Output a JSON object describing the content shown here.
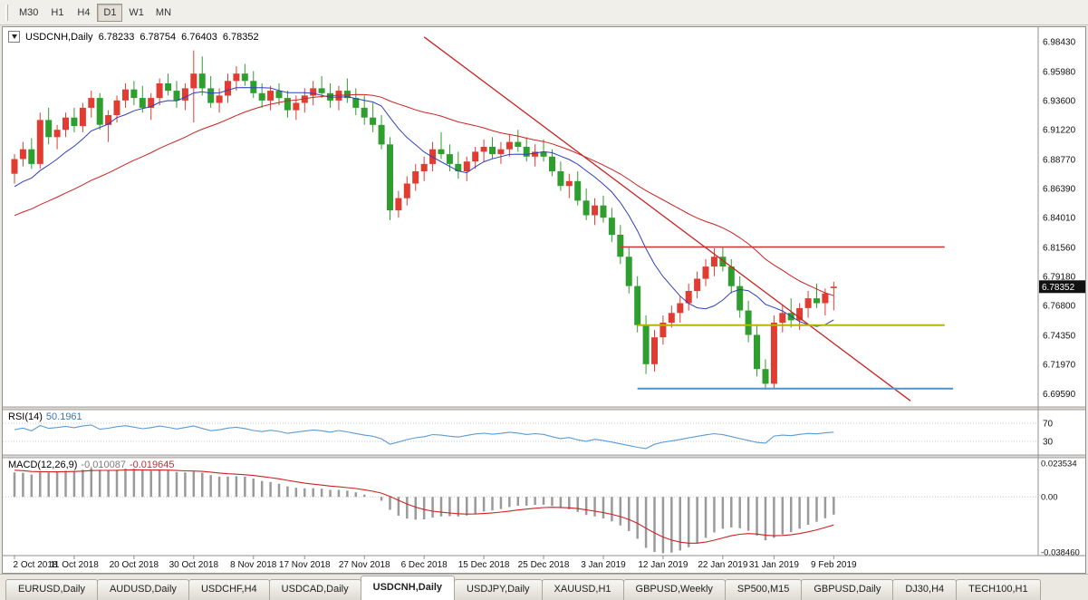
{
  "toolbar": {
    "timeframes": [
      {
        "label": "M30",
        "active": false
      },
      {
        "label": "H1",
        "active": false
      },
      {
        "label": "H4",
        "active": false
      },
      {
        "label": "D1",
        "active": true
      },
      {
        "label": "W1",
        "active": false
      },
      {
        "label": "MN",
        "active": false
      }
    ]
  },
  "chart_header": {
    "symbol": "USDCNH,Daily",
    "open": "6.78233",
    "high": "6.78754",
    "low": "6.76403",
    "close": "6.78352"
  },
  "chart_data": {
    "type": "candlestick",
    "title": "USDCNH,Daily",
    "price_axis": {
      "min": 6.685,
      "max": 6.996,
      "ticks": [
        "6.98430",
        "6.95980",
        "6.93600",
        "6.91220",
        "6.88770",
        "6.86390",
        "6.84010",
        "6.81560",
        "6.79180",
        "6.76800",
        "6.74350",
        "6.71970",
        "6.69590"
      ]
    },
    "current_price": 6.78352,
    "current_price_label": "6.78352",
    "candles": [
      [
        6.876,
        6.892,
        6.868,
        6.888
      ],
      [
        6.888,
        6.902,
        6.882,
        6.896
      ],
      [
        6.896,
        6.905,
        6.88,
        6.884
      ],
      [
        6.884,
        6.926,
        6.88,
        6.92
      ],
      [
        6.92,
        6.93,
        6.9,
        6.906
      ],
      [
        6.906,
        6.916,
        6.896,
        6.912
      ],
      [
        6.912,
        6.926,
        6.906,
        6.922
      ],
      [
        6.922,
        6.93,
        6.91,
        6.915
      ],
      [
        6.915,
        6.934,
        6.91,
        6.93
      ],
      [
        6.93,
        6.944,
        6.922,
        6.938
      ],
      [
        6.938,
        6.942,
        6.912,
        6.916
      ],
      [
        6.916,
        6.928,
        6.902,
        6.924
      ],
      [
        6.924,
        6.94,
        6.918,
        6.936
      ],
      [
        6.936,
        6.95,
        6.93,
        6.945
      ],
      [
        6.945,
        6.952,
        6.932,
        6.938
      ],
      [
        6.938,
        6.948,
        6.926,
        6.93
      ],
      [
        6.93,
        6.942,
        6.92,
        6.938
      ],
      [
        6.938,
        6.954,
        6.932,
        6.95
      ],
      [
        6.95,
        6.958,
        6.94,
        6.944
      ],
      [
        6.944,
        6.952,
        6.93,
        6.936
      ],
      [
        6.936,
        6.95,
        6.928,
        6.946
      ],
      [
        6.946,
        6.977,
        6.918,
        6.958
      ],
      [
        6.958,
        6.972,
        6.94,
        6.946
      ],
      [
        6.946,
        6.956,
        6.93,
        6.934
      ],
      [
        6.934,
        6.946,
        6.926,
        6.94
      ],
      [
        6.94,
        6.958,
        6.934,
        6.952
      ],
      [
        6.952,
        6.964,
        6.944,
        6.958
      ],
      [
        6.958,
        6.966,
        6.948,
        6.952
      ],
      [
        6.952,
        6.96,
        6.938,
        6.942
      ],
      [
        6.942,
        6.95,
        6.93,
        6.936
      ],
      [
        6.936,
        6.948,
        6.928,
        6.944
      ],
      [
        6.944,
        6.95,
        6.932,
        6.938
      ],
      [
        6.938,
        6.944,
        6.922,
        6.928
      ],
      [
        6.928,
        6.94,
        6.92,
        6.934
      ],
      [
        6.934,
        6.946,
        6.926,
        6.94
      ],
      [
        6.94,
        6.952,
        6.932,
        6.946
      ],
      [
        6.946,
        6.956,
        6.938,
        6.942
      ],
      [
        6.942,
        6.95,
        6.93,
        6.936
      ],
      [
        6.936,
        6.948,
        6.928,
        6.944
      ],
      [
        6.944,
        6.954,
        6.934,
        6.938
      ],
      [
        6.938,
        6.946,
        6.924,
        6.93
      ],
      [
        6.93,
        6.94,
        6.916,
        6.922
      ],
      [
        6.922,
        6.934,
        6.91,
        6.916
      ],
      [
        6.916,
        6.924,
        6.896,
        6.9
      ],
      [
        6.9,
        6.906,
        6.838,
        6.846
      ],
      [
        6.846,
        6.862,
        6.84,
        6.856
      ],
      [
        6.856,
        6.874,
        6.85,
        6.868
      ],
      [
        6.868,
        6.884,
        6.862,
        6.878
      ],
      [
        6.878,
        6.89,
        6.87,
        6.884
      ],
      [
        6.884,
        6.902,
        6.878,
        6.896
      ],
      [
        6.896,
        6.91,
        6.888,
        6.892
      ],
      [
        6.892,
        6.9,
        6.878,
        6.884
      ],
      [
        6.884,
        6.894,
        6.872,
        6.878
      ],
      [
        6.878,
        6.89,
        6.87,
        6.886
      ],
      [
        6.886,
        6.898,
        6.88,
        6.894
      ],
      [
        6.894,
        6.904,
        6.886,
        6.898
      ],
      [
        6.898,
        6.906,
        6.888,
        6.892
      ],
      [
        6.892,
        6.902,
        6.884,
        6.896
      ],
      [
        6.896,
        6.908,
        6.89,
        6.902
      ],
      [
        6.902,
        6.912,
        6.894,
        6.898
      ],
      [
        6.898,
        6.906,
        6.886,
        6.89
      ],
      [
        6.89,
        6.9,
        6.882,
        6.894
      ],
      [
        6.894,
        6.904,
        6.886,
        6.89
      ],
      [
        6.89,
        6.896,
        6.874,
        6.878
      ],
      [
        6.878,
        6.886,
        6.862,
        6.866
      ],
      [
        6.866,
        6.876,
        6.856,
        6.87
      ],
      [
        6.87,
        6.878,
        6.85,
        6.854
      ],
      [
        6.854,
        6.864,
        6.838,
        6.842
      ],
      [
        6.842,
        6.856,
        6.834,
        6.85
      ],
      [
        6.85,
        6.858,
        6.836,
        6.84
      ],
      [
        6.84,
        6.848,
        6.82,
        6.826
      ],
      [
        6.826,
        6.834,
        6.802,
        6.808
      ],
      [
        6.808,
        6.816,
        6.778,
        6.784
      ],
      [
        6.784,
        6.792,
        6.746,
        6.752
      ],
      [
        6.752,
        6.76,
        6.712,
        6.72
      ],
      [
        6.72,
        6.748,
        6.714,
        6.742
      ],
      [
        6.742,
        6.76,
        6.736,
        6.754
      ],
      [
        6.754,
        6.768,
        6.75,
        6.762
      ],
      [
        6.762,
        6.776,
        6.754,
        6.77
      ],
      [
        6.77,
        6.786,
        6.764,
        6.78
      ],
      [
        6.78,
        6.796,
        6.774,
        6.79
      ],
      [
        6.79,
        6.806,
        6.784,
        6.8
      ],
      [
        6.8,
        6.815,
        6.792,
        6.808
      ],
      [
        6.808,
        6.816,
        6.796,
        6.8
      ],
      [
        6.8,
        6.806,
        6.778,
        6.784
      ],
      [
        6.784,
        6.792,
        6.758,
        6.764
      ],
      [
        6.764,
        6.772,
        6.738,
        6.744
      ],
      [
        6.744,
        6.752,
        6.71,
        6.716
      ],
      [
        6.716,
        6.724,
        6.699,
        6.704
      ],
      [
        6.704,
        6.76,
        6.7,
        6.754
      ],
      [
        6.754,
        6.768,
        6.746,
        6.762
      ],
      [
        6.762,
        6.774,
        6.75,
        6.756
      ],
      [
        6.756,
        6.77,
        6.748,
        6.766
      ],
      [
        6.766,
        6.78,
        6.758,
        6.774
      ],
      [
        6.774,
        6.786,
        6.766,
        6.77
      ],
      [
        6.77,
        6.782,
        6.76,
        6.778
      ],
      [
        6.78233,
        6.78754,
        6.76403,
        6.78352
      ]
    ],
    "date_labels": [
      {
        "i": 0,
        "t": "2 Oct 2018"
      },
      {
        "i": 7,
        "t": "11 Oct 2018"
      },
      {
        "i": 14,
        "t": "20 Oct 2018"
      },
      {
        "i": 21,
        "t": "30 Oct 2018"
      },
      {
        "i": 28,
        "t": "8 Nov 2018"
      },
      {
        "i": 34,
        "t": "17 Nov 2018"
      },
      {
        "i": 41,
        "t": "27 Nov 2018"
      },
      {
        "i": 48,
        "t": "6 Dec 2018"
      },
      {
        "i": 55,
        "t": "15 Dec 2018"
      },
      {
        "i": 62,
        "t": "25 Dec 2018"
      },
      {
        "i": 69,
        "t": "3 Jan 2019"
      },
      {
        "i": 76,
        "t": "12 Jan 2019"
      },
      {
        "i": 83,
        "t": "22 Jan 2019"
      },
      {
        "i": 89,
        "t": "31 Jan 2019"
      },
      {
        "i": 96,
        "t": "9 Feb 2019"
      }
    ],
    "colors": {
      "up": "#e03c31",
      "down": "#2e9e2e",
      "ma_fast": "#2e3fbf",
      "ma_slow": "#cc2222",
      "trend": "#cc2222"
    },
    "ma": {
      "fast_period": 10,
      "slow_period": 30
    },
    "trendline": {
      "i1": 48,
      "p1": 6.988,
      "i2": 105,
      "p2": 6.69
    },
    "hlines": [
      {
        "name": "resistance-line-red",
        "price": 6.816,
        "i1": 71,
        "i2": 109,
        "color": "#cc3333",
        "w": 1.6
      },
      {
        "name": "support-line-yellow",
        "price": 6.752,
        "i1": 73,
        "i2": 109,
        "color": "#b8b400",
        "w": 2
      },
      {
        "name": "support-line-blue",
        "price": 6.7,
        "i1": 73,
        "i2": 110,
        "color": "#4f94cd",
        "w": 2
      }
    ]
  },
  "indicators": {
    "rsi": {
      "name": "RSI(14)",
      "value": "50.1961",
      "period": 14,
      "levels": [
        70,
        30
      ],
      "level_labels": [
        "70",
        "30"
      ],
      "color": "#5b9bd5"
    },
    "macd": {
      "name": "MACD(12,26,9)",
      "main_value": "-0.010087",
      "signal_value": "-0.019645",
      "scale": [
        {
          "v": 0.023534,
          "t": "0.023534"
        },
        {
          "v": 0,
          "t": "0.00"
        },
        {
          "v": -0.03846,
          "t": "-0.038460"
        }
      ],
      "hist_color": "#9a9a9a",
      "signal_color": "#cc2222"
    }
  },
  "tabs": [
    {
      "label": "EURUSD,Daily",
      "active": false
    },
    {
      "label": "AUDUSD,Daily",
      "active": false
    },
    {
      "label": "USDCHF,H4",
      "active": false
    },
    {
      "label": "USDCAD,Daily",
      "active": false
    },
    {
      "label": "USDCNH,Daily",
      "active": true
    },
    {
      "label": "USDJPY,Daily",
      "active": false
    },
    {
      "label": "XAUUSD,H1",
      "active": false
    },
    {
      "label": "GBPUSD,Weekly",
      "active": false
    },
    {
      "label": "SP500,M15",
      "active": false
    },
    {
      "label": "GBPUSD,Daily",
      "active": false
    },
    {
      "label": "DJ30,H4",
      "active": false
    },
    {
      "label": "TECH100,H1",
      "active": false
    }
  ]
}
